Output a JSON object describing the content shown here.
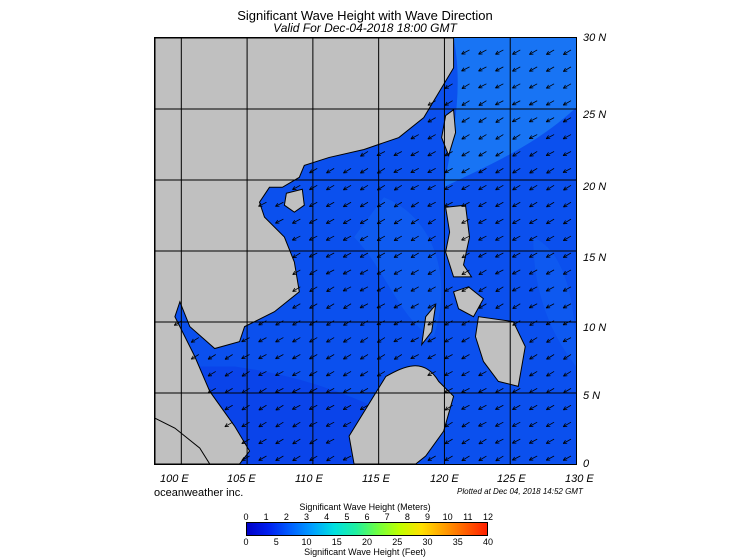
{
  "title": "Significant Wave Height with Wave Direction",
  "subtitle": "Valid For Dec-04-2018 18:00 GMT",
  "credit": "oceanweather inc.",
  "plotted": "Plotted at Dec 04, 2018 14:52 GMT",
  "map": {
    "lat_range": [
      0,
      30
    ],
    "lon_range": [
      98,
      130
    ],
    "lat_labels": [
      "0",
      "5 N",
      "10 N",
      "15 N",
      "20 N",
      "25 N",
      "30 N"
    ],
    "lon_labels": [
      "100 E",
      "105 E",
      "110 E",
      "115 E",
      "120 E",
      "125 E",
      "130 E"
    ],
    "land_color": "#c0c0c0",
    "ocean_colors": [
      "#0a3ee8",
      "#0b50ee",
      "#1262f2",
      "#1e80f6"
    ],
    "arrow_direction": "toward southwest (NE monsoon)"
  },
  "legend": {
    "title_meters": "Significant Wave Height (Meters)",
    "title_feet": "Significant Wave Height (Feet)",
    "meters_ticks": [
      "0",
      "1",
      "2",
      "3",
      "4",
      "5",
      "6",
      "7",
      "8",
      "9",
      "10",
      "11",
      "12"
    ],
    "feet_ticks": [
      "0",
      "5",
      "10",
      "15",
      "20",
      "25",
      "30",
      "35",
      "40"
    ],
    "colors": [
      "#0000c8",
      "#0020f0",
      "#0060ff",
      "#00a0ff",
      "#00e0e0",
      "#20f0a0",
      "#70ff40",
      "#c0ff00",
      "#ffe000",
      "#ffa000",
      "#ff6000",
      "#ff2000"
    ]
  }
}
